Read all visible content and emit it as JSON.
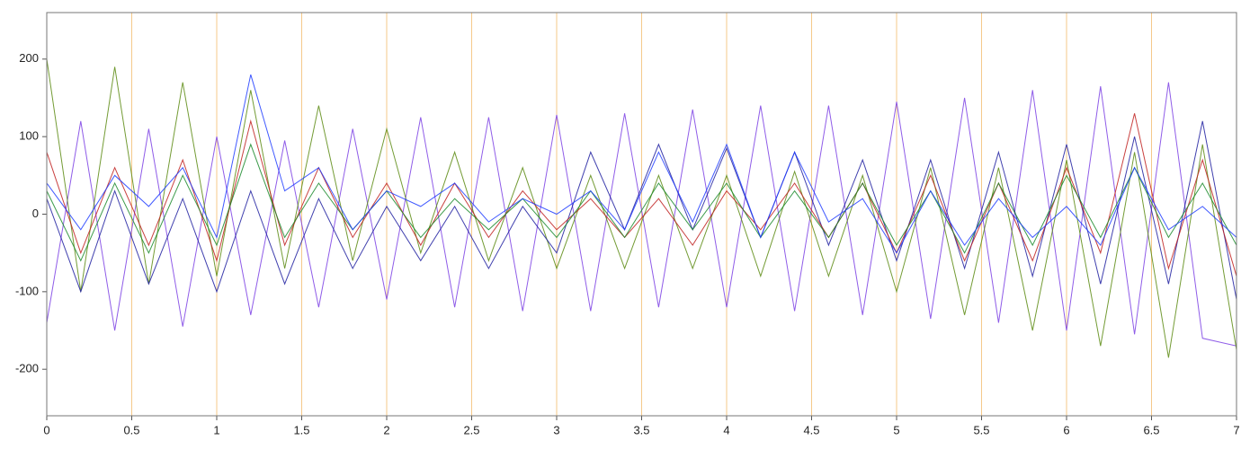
{
  "chart_data": {
    "type": "line",
    "x": [
      0,
      0.2,
      0.4,
      0.6,
      0.8,
      1,
      1.2,
      1.4,
      1.6,
      1.8,
      2,
      2.2,
      2.4,
      2.6,
      2.8,
      3,
      3.2,
      3.4,
      3.6,
      3.8,
      4,
      4.2,
      4.4,
      4.6,
      4.8,
      5,
      5.2,
      5.4,
      5.6,
      5.8,
      6,
      6.2,
      6.4,
      6.6,
      6.8,
      7
    ],
    "series": [
      {
        "color": "#7b3fe4",
        "values": [
          -140,
          120,
          -150,
          110,
          -145,
          100,
          -130,
          95,
          -120,
          110,
          -110,
          125,
          -120,
          125,
          -125,
          128,
          -125,
          130,
          -120,
          135,
          -120,
          140,
          -125,
          140,
          -130,
          145,
          -135,
          150,
          -140,
          160,
          -150,
          165,
          -155,
          170,
          -160,
          -170
        ]
      },
      {
        "color": "#5a8a10",
        "values": [
          200,
          -100,
          190,
          -90,
          170,
          -80,
          160,
          -70,
          140,
          -60,
          110,
          -50,
          80,
          -60,
          60,
          -70,
          50,
          -70,
          50,
          -70,
          50,
          -80,
          55,
          -80,
          50,
          -100,
          60,
          -130,
          60,
          -150,
          70,
          -170,
          80,
          -185,
          90,
          -175
        ]
      },
      {
        "color": "#1f1fa0",
        "values": [
          20,
          -100,
          30,
          -90,
          20,
          -100,
          30,
          -90,
          20,
          -70,
          10,
          -60,
          10,
          -70,
          10,
          -50,
          80,
          -20,
          90,
          -20,
          85,
          -30,
          80,
          -40,
          70,
          -60,
          70,
          -70,
          80,
          -80,
          90,
          -90,
          100,
          -90,
          120,
          -110
        ]
      },
      {
        "color": "#c0201e",
        "values": [
          80,
          -50,
          60,
          -40,
          70,
          -60,
          120,
          -40,
          60,
          -30,
          40,
          -40,
          40,
          -30,
          30,
          -20,
          20,
          -30,
          20,
          -40,
          30,
          -20,
          40,
          -30,
          40,
          -50,
          50,
          -60,
          40,
          -60,
          60,
          -50,
          130,
          -70,
          70,
          -80
        ]
      },
      {
        "color": "#1a8a2a",
        "values": [
          30,
          -60,
          40,
          -50,
          50,
          -40,
          90,
          -30,
          40,
          -20,
          30,
          -30,
          20,
          -20,
          20,
          -30,
          30,
          -30,
          40,
          -20,
          40,
          -30,
          30,
          -30,
          40,
          -40,
          30,
          -50,
          40,
          -40,
          50,
          -30,
          60,
          -30,
          40,
          -40
        ]
      },
      {
        "color": "#1e3cff",
        "values": [
          40,
          -20,
          50,
          10,
          60,
          -30,
          180,
          30,
          60,
          -20,
          30,
          10,
          40,
          -10,
          20,
          0,
          30,
          -20,
          80,
          -10,
          90,
          -30,
          80,
          -10,
          20,
          -50,
          30,
          -40,
          20,
          -30,
          10,
          -40,
          60,
          -20,
          10,
          -30
        ]
      }
    ],
    "xlim": [
      0,
      7
    ],
    "xticks": [
      0,
      0.5,
      1,
      1.5,
      2,
      2.5,
      3,
      3.5,
      4,
      4.5,
      5,
      5.5,
      6,
      6.5,
      7
    ],
    "ylim": [
      -260,
      260
    ],
    "yticks": [
      -200,
      -100,
      0,
      100,
      200
    ],
    "grid": true
  }
}
